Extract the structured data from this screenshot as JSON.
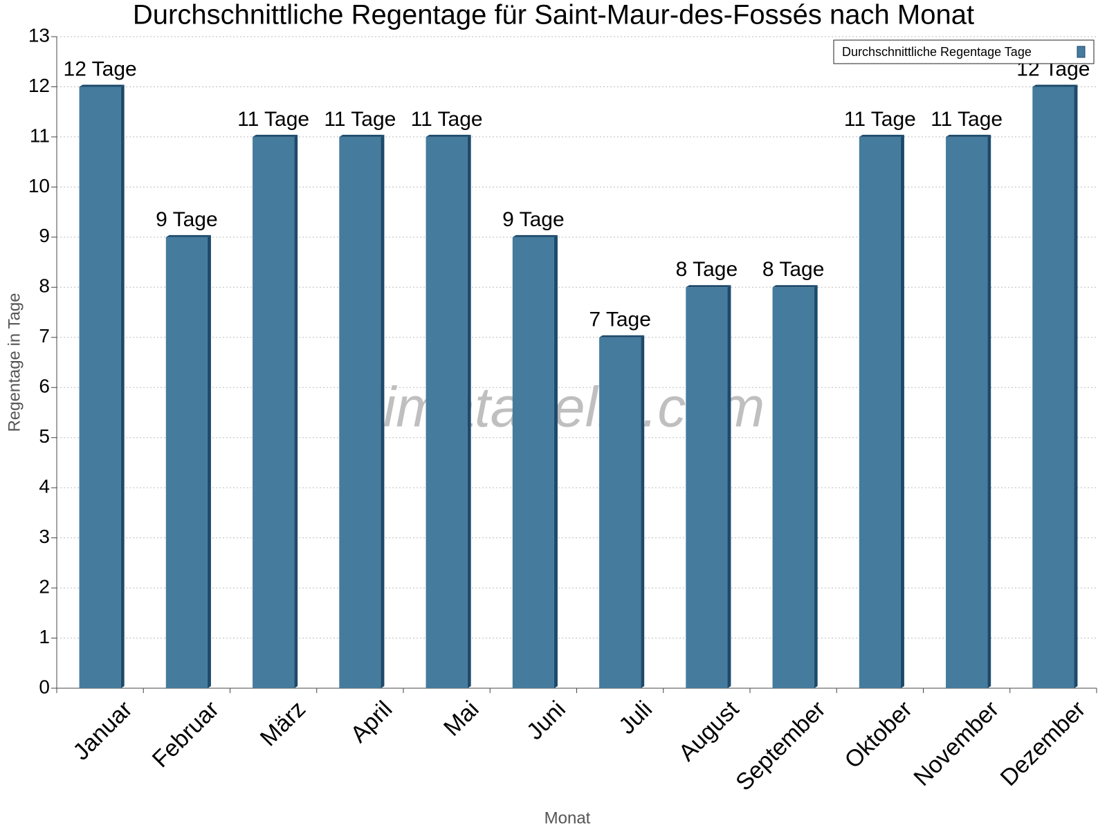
{
  "chart_data": {
    "type": "bar",
    "title": "Durchschnittliche Regentage für Saint-Maur-des-Fossés nach Monat",
    "x_label": "Monat",
    "y_label": "Regentage in Tage",
    "watermark": "klimatabelle.com",
    "categories": [
      "Januar",
      "Februar",
      "März",
      "April",
      "Mai",
      "Juni",
      "Juli",
      "August",
      "September",
      "Oktober",
      "November",
      "Dezember"
    ],
    "series": [
      {
        "name": "Durchschnittliche Regentage Tage",
        "color": "#457b9d",
        "values": [
          12,
          9,
          11,
          11,
          11,
          9,
          7,
          8,
          8,
          11,
          11,
          12
        ],
        "value_labels": [
          "12 Tage",
          "9 Tage",
          "11 Tage",
          "11 Tage",
          "11 Tage",
          "9 Tage",
          "7 Tage",
          "8 Tage",
          "8 Tage",
          "11 Tage",
          "11 Tage",
          "12 Tage"
        ]
      }
    ],
    "ylim": [
      0,
      13
    ],
    "yticks": [
      0,
      1,
      2,
      3,
      4,
      5,
      6,
      7,
      8,
      9,
      10,
      11,
      12,
      13
    ],
    "grid": true,
    "legend": "top-right"
  }
}
